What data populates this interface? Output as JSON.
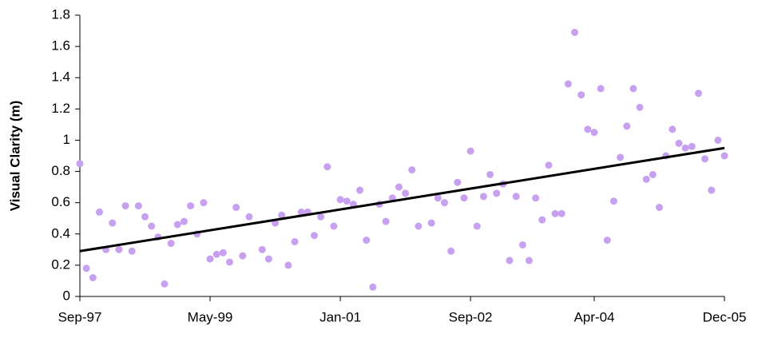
{
  "chart_data": {
    "type": "scatter",
    "y_label": "Visual Clarity (m)",
    "color": "#c8a0f0",
    "x": [
      "Sep-97",
      "Oct-97",
      "Nov-97",
      "Dec-97",
      "Jan-98",
      "Feb-98",
      "Mar-98",
      "Apr-98",
      "May-98",
      "Jun-98",
      "Jul-98",
      "Aug-98",
      "Sep-98",
      "Oct-98",
      "Nov-98",
      "Dec-98",
      "Jan-99",
      "Feb-99",
      "Mar-99",
      "Apr-99",
      "May-99",
      "Jun-99",
      "Jul-99",
      "Aug-99",
      "Sep-99",
      "Oct-99",
      "Nov-99",
      "Jan-00",
      "Feb-00",
      "Mar-00",
      "Apr-00",
      "May-00",
      "Jun-00",
      "Jul-00",
      "Aug-00",
      "Sep-00",
      "Oct-00",
      "Nov-00",
      "Dec-00",
      "Jan-01",
      "Feb-01",
      "Mar-01",
      "Apr-01",
      "May-01",
      "Jun-01",
      "Jul-01",
      "Aug-01",
      "Sep-01",
      "Oct-01",
      "Nov-01",
      "Dec-01",
      "Jan-02",
      "Mar-02",
      "Apr-02",
      "May-02",
      "Jun-02",
      "Jul-02",
      "Aug-02",
      "Sep-02",
      "Oct-02",
      "Nov-02",
      "Dec-02",
      "Jan-03",
      "Feb-03",
      "Mar-03",
      "Apr-03",
      "May-03",
      "Jun-03",
      "Jul-03",
      "Aug-03",
      "Sep-03",
      "Oct-03",
      "Nov-03",
      "Dec-03",
      "Jan-04",
      "Feb-04",
      "Mar-04",
      "Apr-04",
      "May-04",
      "Jun-04",
      "Jul-04",
      "Aug-04",
      "Sep-04",
      "Oct-04",
      "Nov-04",
      "Dec-04",
      "Jan-05",
      "Feb-05",
      "Mar-05",
      "Apr-05",
      "May-05",
      "Jun-05",
      "Jul-05",
      "Aug-05",
      "Sep-05",
      "Oct-05",
      "Nov-05",
      "Dec-05"
    ],
    "values": [
      0.85,
      0.18,
      0.12,
      0.54,
      0.3,
      0.47,
      0.3,
      0.58,
      0.29,
      0.58,
      0.51,
      0.45,
      0.38,
      0.08,
      0.34,
      0.46,
      0.48,
      0.58,
      0.4,
      0.6,
      0.24,
      0.27,
      0.28,
      0.22,
      0.57,
      0.26,
      0.51,
      0.3,
      0.24,
      0.47,
      0.52,
      0.2,
      0.35,
      0.54,
      0.54,
      0.39,
      0.51,
      0.83,
      0.45,
      0.62,
      0.61,
      0.59,
      0.68,
      0.36,
      0.06,
      0.59,
      0.48,
      0.63,
      0.7,
      0.66,
      0.81,
      0.45,
      0.47,
      0.63,
      0.6,
      0.29,
      0.73,
      0.63,
      0.93,
      0.45,
      0.64,
      0.78,
      0.66,
      0.72,
      0.23,
      0.64,
      0.33,
      0.23,
      0.63,
      0.49,
      0.84,
      0.53,
      0.53,
      1.36,
      1.69,
      1.29,
      1.07,
      1.05,
      1.33,
      0.36,
      0.61,
      0.89,
      1.09,
      1.33,
      1.21,
      0.75,
      0.78,
      0.57,
      0.9,
      1.07,
      0.98,
      0.95,
      0.96,
      1.3,
      0.88,
      0.68,
      1.0,
      0.9
    ],
    "trendline": {
      "x": [
        "Sep-97",
        "Dec-05"
      ],
      "values": [
        0.29,
        0.95
      ],
      "color": "#000000"
    },
    "xlim": [
      "Sep-97",
      "Dec-05"
    ],
    "xticks": [
      "Sep-97",
      "May-99",
      "Jan-01",
      "Sep-02",
      "Apr-04",
      "Dec-05"
    ],
    "ylim": [
      0,
      1.8
    ],
    "yticks": [
      0,
      0.2,
      0.4,
      0.6,
      0.8,
      1,
      1.2,
      1.4,
      1.6,
      1.8
    ],
    "grid": false
  }
}
